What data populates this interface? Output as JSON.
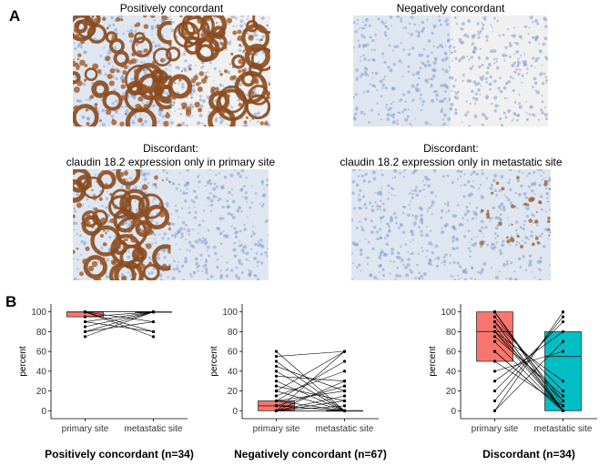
{
  "panel_a": {
    "letter": "A",
    "images": [
      {
        "caption_lines": [
          "Positively concordant"
        ],
        "left_stain": "strong",
        "right_stain": "strong"
      },
      {
        "caption_lines": [
          "Negatively concordant"
        ],
        "left_stain": "none",
        "right_stain": "none"
      },
      {
        "caption_lines": [
          "Discordant:",
          "claudin 18.2 expression only in primary site"
        ],
        "left_stain": "strong",
        "right_stain": "none"
      },
      {
        "caption_lines": [
          "Discordant:",
          "claudin 18.2 expression only in metastatic site"
        ],
        "left_stain": "none",
        "right_stain": "weak"
      }
    ],
    "colors": {
      "hematoxylin": "#7f9ccf",
      "dab": "#8a4a1e",
      "background": "#e9e9e9"
    }
  },
  "panel_b": {
    "letter": "B",
    "chart_data": [
      {
        "type": "box-paired",
        "title": "Positively concordant (n=34)",
        "categories": [
          "primary site",
          "metastatic site"
        ],
        "ylabel": "percent",
        "ylim": [
          -8,
          108
        ],
        "yticks": [
          0,
          20,
          40,
          60,
          80,
          100
        ],
        "grid": false,
        "boxes": [
          {
            "q1": 95,
            "median": 100,
            "q3": 100,
            "color": "#f8766d"
          },
          {
            "q1": 100,
            "median": 100,
            "q3": 100,
            "color": "#00bfc4"
          }
        ],
        "pairs": [
          [
            100,
            100
          ],
          [
            100,
            90
          ],
          [
            100,
            80
          ],
          [
            100,
            75
          ],
          [
            95,
            100
          ],
          [
            90,
            100
          ],
          [
            85,
            100
          ],
          [
            80,
            90
          ],
          [
            80,
            100
          ],
          [
            75,
            100
          ],
          [
            100,
            100
          ],
          [
            90,
            80
          ]
        ]
      },
      {
        "type": "box-paired",
        "title": "Negatively concordant (n=67)",
        "categories": [
          "primary site",
          "metastatic site"
        ],
        "ylabel": "percent",
        "ylim": [
          -8,
          108
        ],
        "yticks": [
          0,
          20,
          40,
          60,
          80,
          100
        ],
        "grid": false,
        "boxes": [
          {
            "q1": 0,
            "median": 5,
            "q3": 10,
            "color": "#f8766d"
          },
          {
            "q1": 0,
            "median": 0,
            "q3": 0,
            "color": "#00bfc4"
          }
        ],
        "pairs": [
          [
            60,
            0
          ],
          [
            55,
            60
          ],
          [
            50,
            0
          ],
          [
            45,
            20
          ],
          [
            40,
            0
          ],
          [
            35,
            30
          ],
          [
            30,
            0
          ],
          [
            25,
            10
          ],
          [
            20,
            60
          ],
          [
            20,
            0
          ],
          [
            15,
            40
          ],
          [
            10,
            50
          ],
          [
            10,
            0
          ],
          [
            5,
            25
          ],
          [
            5,
            0
          ],
          [
            0,
            60
          ],
          [
            0,
            30
          ],
          [
            0,
            15
          ],
          [
            0,
            5
          ],
          [
            0,
            0
          ],
          [
            0,
            10
          ],
          [
            10,
            20
          ],
          [
            0,
            0
          ],
          [
            5,
            0
          ]
        ]
      },
      {
        "type": "box-paired",
        "title": "Discordant (n=34)",
        "categories": [
          "primary site",
          "metastatic site"
        ],
        "ylabel": "percent",
        "ylim": [
          -8,
          108
        ],
        "yticks": [
          0,
          20,
          40,
          60,
          80,
          100
        ],
        "grid": false,
        "boxes": [
          {
            "q1": 50,
            "median": 80,
            "q3": 100,
            "color": "#f8766d"
          },
          {
            "q1": 0,
            "median": 55,
            "q3": 80,
            "color": "#00bfc4"
          }
        ],
        "pairs": [
          [
            100,
            0
          ],
          [
            100,
            5
          ],
          [
            95,
            10
          ],
          [
            90,
            0
          ],
          [
            90,
            20
          ],
          [
            85,
            0
          ],
          [
            80,
            30
          ],
          [
            80,
            0
          ],
          [
            75,
            15
          ],
          [
            70,
            0
          ],
          [
            60,
            0
          ],
          [
            50,
            5
          ],
          [
            40,
            60
          ],
          [
            30,
            80
          ],
          [
            20,
            90
          ],
          [
            10,
            95
          ],
          [
            0,
            100
          ],
          [
            0,
            70
          ],
          [
            60,
            0
          ],
          [
            80,
            10
          ],
          [
            100,
            0
          ],
          [
            90,
            0
          ]
        ]
      }
    ]
  }
}
